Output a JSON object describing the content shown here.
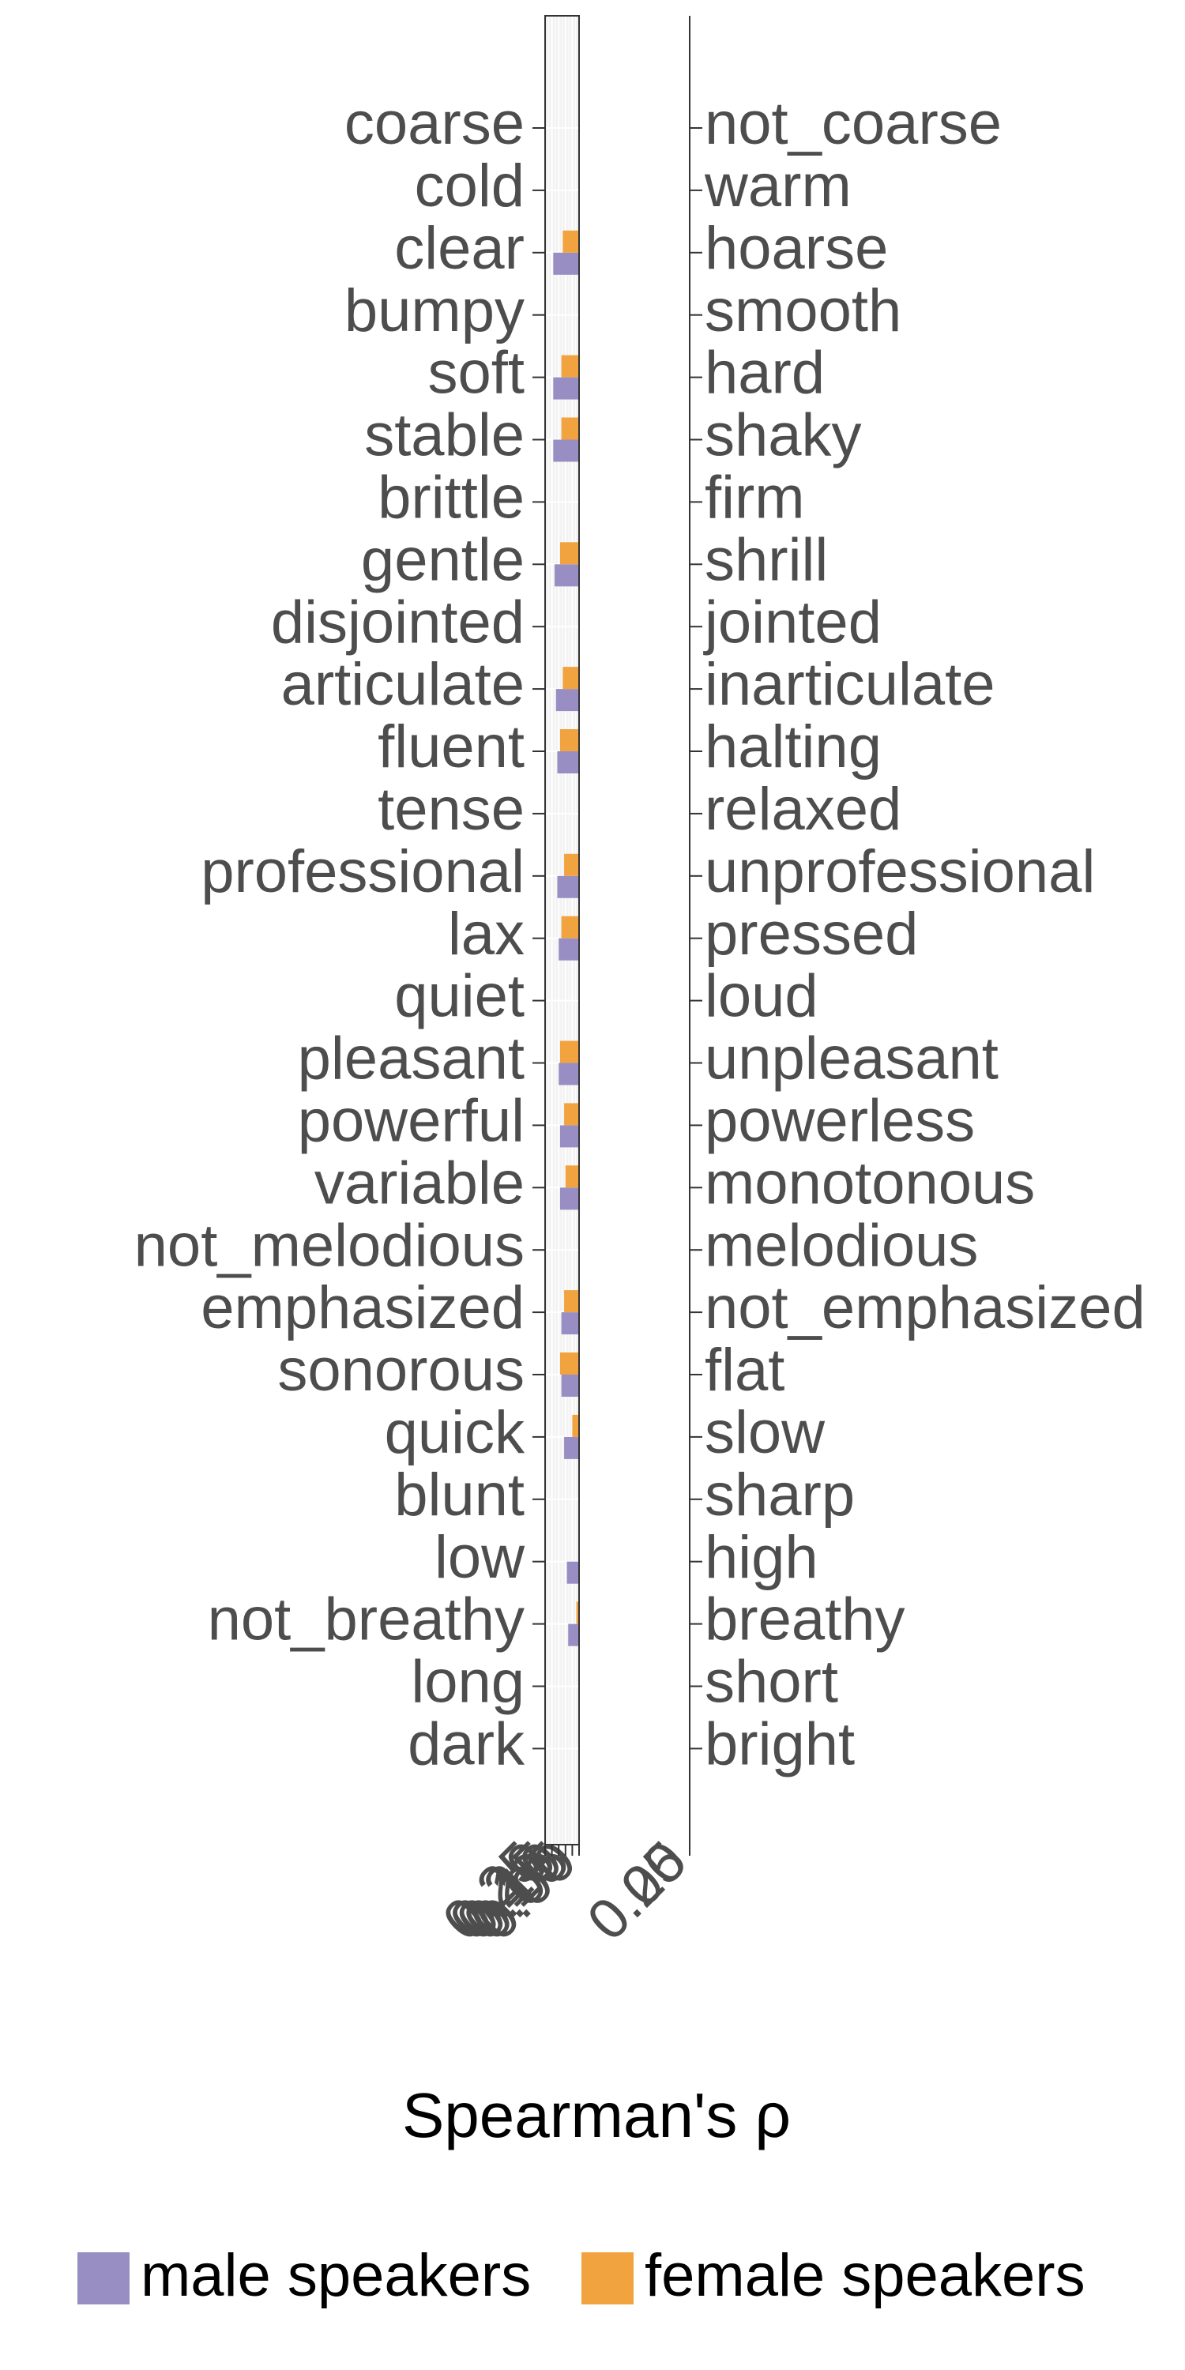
{
  "chart_data": {
    "type": "bar",
    "orientation": "horizontal",
    "xlabel": "Spearman's ρ",
    "title": "",
    "grid": true,
    "legend_position": "bottom",
    "left_categories": [
      "coarse",
      "cold",
      "clear",
      "bumpy",
      "soft",
      "stable",
      "brittle",
      "gentle",
      "disjointed",
      "articulate",
      "fluent",
      "tense",
      "professional",
      "lax",
      "quiet",
      "pleasant",
      "powerful",
      "variable",
      "not_melodious",
      "emphasized",
      "sonorous",
      "quick",
      "blunt",
      "low",
      "not_breathy",
      "long",
      "dark"
    ],
    "right_categories": [
      "not_coarse",
      "warm",
      "hoarse",
      "smooth",
      "hard",
      "shaky",
      "firm",
      "shrill",
      "jointed",
      "inarticulate",
      "halting",
      "relaxed",
      "unprofessional",
      "pressed",
      "loud",
      "unpleasant",
      "powerless",
      "monotonous",
      "melodious",
      "not_emphasized",
      "flat",
      "slow",
      "sharp",
      "high",
      "breathy",
      "short",
      "bright"
    ],
    "xlim": [
      0,
      0.25
    ],
    "x_ticks": [
      0.0,
      0.05,
      0.1,
      0.15,
      0.2,
      0.25
    ],
    "x_tick_labels": [
      "0.00",
      "0.05",
      "0.10",
      "0.15",
      "0.20",
      "0.25"
    ],
    "right_xlim": [
      0,
      0.25
    ],
    "right_x_ticks": [
      0.0,
      0.25
    ],
    "right_x_tick_labels": [
      "0.00",
      "0.25"
    ],
    "series": [
      {
        "name": "male speakers",
        "color": "#998ec3",
        "values": [
          0,
          0,
          0.19,
          0,
          0.19,
          0.19,
          0,
          0.18,
          0,
          0.17,
          0.16,
          0,
          0.16,
          0.15,
          0,
          0.15,
          0.14,
          0.14,
          0,
          0.13,
          0.13,
          0.11,
          0,
          0.09,
          0.08,
          0,
          0
        ]
      },
      {
        "name": "female speakers",
        "color": "#f1a340",
        "values": [
          0,
          0,
          0.12,
          0,
          0.13,
          0.13,
          0,
          0.14,
          0,
          0.12,
          0.14,
          0,
          0.11,
          0.13,
          0,
          0.14,
          0.11,
          0.1,
          0,
          0.11,
          0.14,
          0.05,
          0,
          0,
          0.02,
          0,
          0
        ]
      }
    ]
  }
}
